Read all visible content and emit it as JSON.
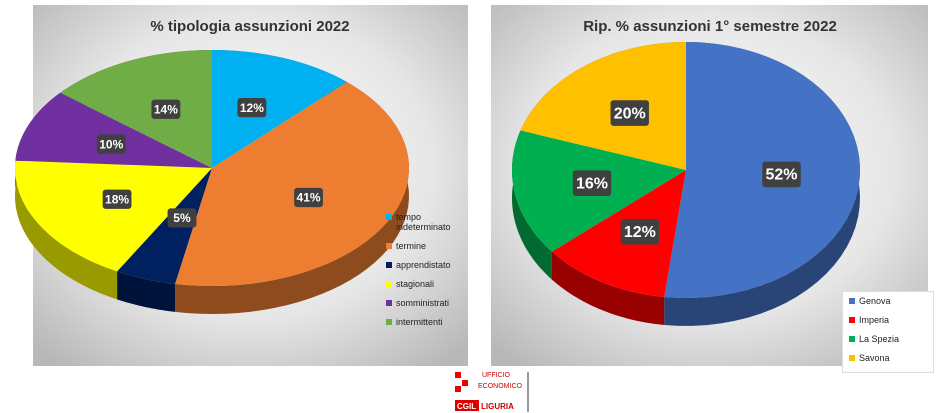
{
  "chart_data": [
    {
      "type": "pie",
      "title": "% tipologia assunzioni 2022",
      "categories": [
        "tempo indeterminato",
        "termine",
        "apprendistato",
        "stagionali",
        "somministrati",
        "intermittenti"
      ],
      "values": [
        12,
        41,
        5,
        18,
        10,
        14
      ],
      "value_labels": [
        "12%",
        "41%",
        "5%",
        "18%",
        "10%",
        "14%"
      ],
      "colors": [
        "#00b0f0",
        "#ed7d31",
        "#002060",
        "#ffff00",
        "#7030a0",
        "#70ad47"
      ],
      "legend": "right"
    },
    {
      "type": "pie",
      "title": "Rip. % assunzioni 1° semestre 2022",
      "categories": [
        "Genova",
        "Imperia",
        "La Spezia",
        "Savona"
      ],
      "values": [
        52,
        12,
        16,
        20
      ],
      "value_labels": [
        "52%",
        "12%",
        "16%",
        "20%"
      ],
      "colors": [
        "#4472c4",
        "#ff0000",
        "#00b050",
        "#ffc000"
      ],
      "legend": "lower right"
    }
  ],
  "logo": {
    "line1": "UFFICIO",
    "line2": "ECONOMICO",
    "line3": "CGIL",
    "line4": "LIGURIA"
  }
}
